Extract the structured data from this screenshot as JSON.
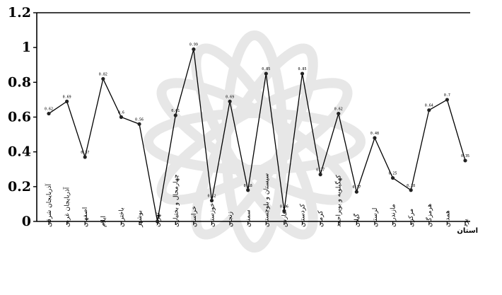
{
  "chart_data": {
    "type": "line",
    "xlabel": "استان",
    "ylim": [
      0,
      1.2
    ],
    "yticks": [
      "0",
      "0.2",
      "0.4",
      "0.6",
      "0.8",
      "1",
      "1.2"
    ],
    "categories": [
      "آذربایجان شرقی",
      "آذربایجان غربی",
      "اصفهان",
      "ایلام",
      "باختران",
      "بوشهر",
      "تهران",
      "چهارمحال و بختیاری",
      "خراسان",
      "خوزستان",
      "زنجان",
      "سمنان",
      "سیستان و بلوچستان",
      "فارس",
      "کردستان",
      "کرمان",
      "کهگیلویه و بویراحمد",
      "گیلان",
      "لرستان",
      "مازندران",
      "مرکزی",
      "هرمزگان",
      "همدان",
      "یزد"
    ],
    "series": [
      {
        "values": [
          0.62,
          0.69,
          0.37,
          0.82,
          0.6,
          0.56,
          0.0,
          0.61,
          0.99,
          0.12,
          0.69,
          0.18,
          0.85,
          0.06,
          0.85,
          0.27,
          0.62,
          0.17,
          0.48,
          0.25,
          0.18,
          0.64,
          0.7,
          0.35
        ]
      }
    ],
    "grid": false,
    "line_color": "#000000",
    "marker_color": "#222222"
  }
}
